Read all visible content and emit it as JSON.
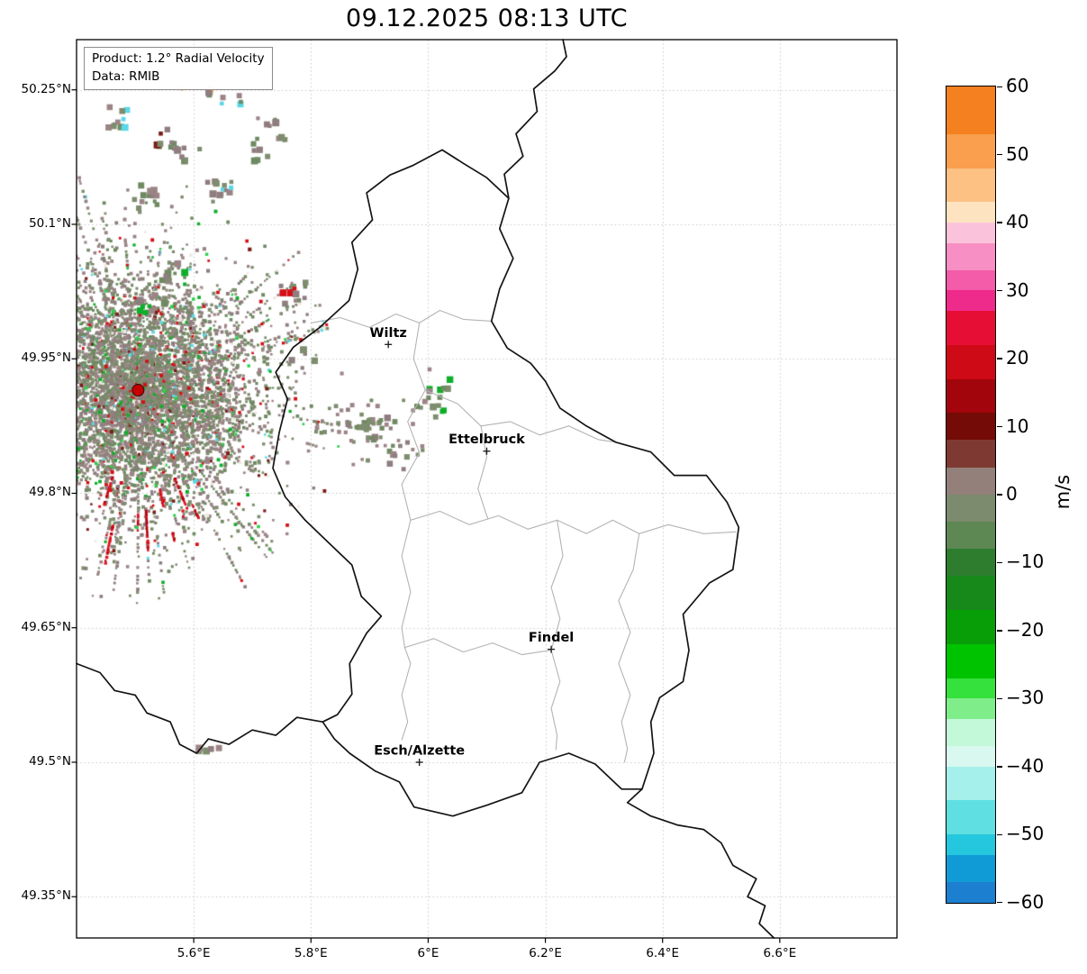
{
  "title": "09.12.2025 08:13 UTC",
  "info_box": {
    "product": "Product: 1.2° Radial Velocity",
    "source": "Data: RMIB"
  },
  "axes": {
    "lon_range": [
      5.4,
      6.8
    ],
    "lat_range": [
      49.304,
      50.306
    ],
    "x_ticks": [
      {
        "lon": 5.6,
        "label": "5.6°E"
      },
      {
        "lon": 5.8,
        "label": "5.8°E"
      },
      {
        "lon": 6.0,
        "label": "6°E"
      },
      {
        "lon": 6.2,
        "label": "6.2°E"
      },
      {
        "lon": 6.4,
        "label": "6.4°E"
      },
      {
        "lon": 6.6,
        "label": "6.6°E"
      }
    ],
    "y_ticks": [
      {
        "lat": 50.25,
        "label": "50.25°N"
      },
      {
        "lat": 50.1,
        "label": "50.1°N"
      },
      {
        "lat": 49.95,
        "label": "49.95°N"
      },
      {
        "lat": 49.8,
        "label": "49.8°N"
      },
      {
        "lat": 49.65,
        "label": "49.65°N"
      },
      {
        "lat": 49.5,
        "label": "49.5°N"
      },
      {
        "lat": 49.35,
        "label": "49.35°N"
      }
    ],
    "grid_color": "#c9c9c9"
  },
  "colorbar": {
    "label": "m/s",
    "range": [
      -60,
      60
    ],
    "ticks": [
      {
        "value": 60,
        "label": "60"
      },
      {
        "value": 50,
        "label": "50"
      },
      {
        "value": 40,
        "label": "40"
      },
      {
        "value": 30,
        "label": "30"
      },
      {
        "value": 20,
        "label": "20"
      },
      {
        "value": 10,
        "label": "10"
      },
      {
        "value": 0,
        "label": "0"
      },
      {
        "value": -10,
        "label": "−10"
      },
      {
        "value": -20,
        "label": "−20"
      },
      {
        "value": -30,
        "label": "−30"
      },
      {
        "value": -40,
        "label": "−40"
      },
      {
        "value": -50,
        "label": "−50"
      },
      {
        "value": -60,
        "label": "−60"
      }
    ],
    "segments": [
      {
        "max": 60,
        "min": 53,
        "color": "#f5801f"
      },
      {
        "max": 53,
        "min": 48,
        "color": "#f99f4e"
      },
      {
        "max": 48,
        "min": 43,
        "color": "#fcc183"
      },
      {
        "max": 43,
        "min": 40,
        "color": "#fde3c0"
      },
      {
        "max": 40,
        "min": 37,
        "color": "#fbc3db"
      },
      {
        "max": 37,
        "min": 33,
        "color": "#f78fc4"
      },
      {
        "max": 33,
        "min": 30,
        "color": "#f45ba8"
      },
      {
        "max": 30,
        "min": 27,
        "color": "#ee2a8a"
      },
      {
        "max": 27,
        "min": 22,
        "color": "#e60e34"
      },
      {
        "max": 22,
        "min": 17,
        "color": "#cf0a17"
      },
      {
        "max": 17,
        "min": 12,
        "color": "#a2050b"
      },
      {
        "max": 12,
        "min": 8,
        "color": "#740b06"
      },
      {
        "max": 8,
        "min": 4,
        "color": "#7e3a32"
      },
      {
        "max": 4,
        "min": 0,
        "color": "#93807a"
      },
      {
        "max": 0,
        "min": -4,
        "color": "#7c8a6e"
      },
      {
        "max": -4,
        "min": -8,
        "color": "#5d8853"
      },
      {
        "max": -8,
        "min": -12,
        "color": "#2e7d2e"
      },
      {
        "max": -12,
        "min": -17,
        "color": "#17891a"
      },
      {
        "max": -17,
        "min": -22,
        "color": "#089e08"
      },
      {
        "max": -22,
        "min": -27,
        "color": "#00c300"
      },
      {
        "max": -27,
        "min": -30,
        "color": "#35e13c"
      },
      {
        "max": -30,
        "min": -33,
        "color": "#7fee8a"
      },
      {
        "max": -33,
        "min": -37,
        "color": "#c3f8d8"
      },
      {
        "max": -37,
        "min": -40,
        "color": "#d8f8f0"
      },
      {
        "max": -40,
        "min": -45,
        "color": "#a5f0ea"
      },
      {
        "max": -45,
        "min": -50,
        "color": "#5fdfe2"
      },
      {
        "max": -50,
        "min": -53,
        "color": "#24c7dd"
      },
      {
        "max": -53,
        "min": -57,
        "color": "#119bd6"
      },
      {
        "max": -57,
        "min": -60,
        "color": "#1c7fd0"
      }
    ]
  },
  "cities": [
    {
      "name": "Wiltz",
      "lon": 5.932,
      "lat": 49.966
    },
    {
      "name": "Ettelbruck",
      "lon": 6.1,
      "lat": 49.847
    },
    {
      "name": "Findel",
      "lon": 6.21,
      "lat": 49.626
    },
    {
      "name": "Esch/Alzette",
      "lon": 5.985,
      "lat": 49.5
    }
  ],
  "radar": {
    "site": {
      "lon": 5.505,
      "lat": 49.915
    },
    "site_marker_color": "#c40000",
    "site_marker_edge": "#3a0000",
    "seed": 1337,
    "colors": {
      "mauve": "#9c8486",
      "mauve2": "#8f7d7f",
      "green_gray": "#7e8d6e",
      "green_gray2": "#6f8a62",
      "red": "#d40f16",
      "dark_red": "#7a1d16",
      "bright_green": "#0fae2a",
      "green2": "#2bd04a",
      "cyan": "#58d8e8",
      "light_cyan": "#a8eef2",
      "orange": "#f5a455",
      "white": "#efe8e0"
    },
    "clusters": [
      {
        "lon": 5.6,
        "lat": 50.25,
        "accent": "orange"
      },
      {
        "lon": 5.669,
        "lat": 50.235,
        "accent": "cyan"
      },
      {
        "lon": 5.73,
        "lat": 50.209
      },
      {
        "lon": 5.538,
        "lat": 50.199,
        "accent": "dark_red"
      },
      {
        "lon": 5.469,
        "lat": 50.222,
        "accent": "cyan"
      },
      {
        "lon": 5.584,
        "lat": 50.179
      },
      {
        "lon": 5.707,
        "lat": 50.187
      },
      {
        "lon": 5.638,
        "lat": 50.144,
        "accent": "cyan"
      },
      {
        "lon": 5.515,
        "lat": 50.134
      },
      {
        "lon": 5.554,
        "lat": 50.052,
        "accent": "bright_green"
      },
      {
        "lon": 5.526,
        "lat": 50.017,
        "accent": "bright_green"
      },
      {
        "lon": 5.764,
        "lat": 50.027,
        "accent": "red"
      },
      {
        "lon": 5.784,
        "lat": 49.953
      },
      {
        "lon": 6.007,
        "lat": 49.928,
        "accent": "bright_green"
      },
      {
        "lon": 5.881,
        "lat": 49.883
      },
      {
        "lon": 5.922,
        "lat": 49.876
      },
      {
        "lon": 5.953,
        "lat": 49.848
      },
      {
        "lon": 5.623,
        "lat": 49.508
      },
      {
        "lon": 5.999,
        "lat": 49.898,
        "accent": "bright_green"
      }
    ],
    "patches": [
      {
        "lon_min": 5.84,
        "lon_max": 5.99,
        "lat_min": 49.825,
        "lat_max": 49.905,
        "density": 0.1
      },
      {
        "lon_min": 5.79,
        "lon_max": 5.87,
        "lat_min": 49.855,
        "lat_max": 49.9,
        "density": 0.12
      }
    ]
  },
  "map": {
    "border_color": "#141414",
    "district_color": "#b4b4b4",
    "borders": {
      "luxembourg": [
        [
          6.024,
          50.183
        ],
        [
          6.06,
          50.168
        ],
        [
          6.1,
          50.152
        ],
        [
          6.1375,
          50.129
        ],
        [
          6.122,
          50.095
        ],
        [
          6.145,
          50.062
        ],
        [
          6.122,
          50.028
        ],
        [
          6.108,
          49.992
        ],
        [
          6.135,
          49.962
        ],
        [
          6.175,
          49.945
        ],
        [
          6.2,
          49.925
        ],
        [
          6.225,
          49.895
        ],
        [
          6.27,
          49.875
        ],
        [
          6.32,
          49.857
        ],
        [
          6.38,
          49.846
        ],
        [
          6.42,
          49.82
        ],
        [
          6.475,
          49.82
        ],
        [
          6.51,
          49.79
        ],
        [
          6.53,
          49.762
        ],
        [
          6.52,
          49.715
        ],
        [
          6.48,
          49.7
        ],
        [
          6.435,
          49.665
        ],
        [
          6.445,
          49.625
        ],
        [
          6.435,
          49.59
        ],
        [
          6.395,
          49.572
        ],
        [
          6.38,
          49.545
        ],
        [
          6.385,
          49.51
        ],
        [
          6.365,
          49.47
        ],
        [
          6.33,
          49.47
        ],
        [
          6.285,
          49.498
        ],
        [
          6.24,
          49.51
        ],
        [
          6.19,
          49.5
        ],
        [
          6.16,
          49.466
        ],
        [
          6.1,
          49.452
        ],
        [
          6.042,
          49.44
        ],
        [
          5.976,
          49.45
        ],
        [
          5.951,
          49.478
        ],
        [
          5.91,
          49.49
        ],
        [
          5.866,
          49.51
        ],
        [
          5.84,
          49.526
        ],
        [
          5.82,
          49.545
        ],
        [
          5.845,
          49.553
        ],
        [
          5.87,
          49.576
        ],
        [
          5.866,
          49.61
        ],
        [
          5.895,
          49.644
        ],
        [
          5.92,
          49.663
        ],
        [
          5.886,
          49.685
        ],
        [
          5.87,
          49.72
        ],
        [
          5.83,
          49.745
        ],
        [
          5.79,
          49.77
        ],
        [
          5.756,
          49.796
        ],
        [
          5.735,
          49.828
        ],
        [
          5.746,
          49.868
        ],
        [
          5.76,
          49.905
        ],
        [
          5.74,
          49.935
        ],
        [
          5.77,
          49.963
        ],
        [
          5.815,
          49.985
        ],
        [
          5.865,
          50.015
        ],
        [
          5.88,
          50.05
        ],
        [
          5.87,
          50.08
        ],
        [
          5.905,
          50.105
        ],
        [
          5.895,
          50.135
        ],
        [
          5.935,
          50.155
        ],
        [
          5.975,
          50.166
        ],
        [
          6.024,
          50.183
        ]
      ],
      "belgium_germany": [
        [
          6.1375,
          50.129
        ],
        [
          6.13,
          50.156
        ],
        [
          6.162,
          50.176
        ],
        [
          6.15,
          50.201
        ],
        [
          6.186,
          50.226
        ],
        [
          6.18,
          50.251
        ],
        [
          6.216,
          50.271
        ],
        [
          6.236,
          50.287
        ],
        [
          6.23,
          50.306
        ]
      ],
      "belgium_france": [
        [
          5.4,
          49.61
        ],
        [
          5.44,
          49.6
        ],
        [
          5.465,
          49.58
        ],
        [
          5.5,
          49.575
        ],
        [
          5.52,
          49.555
        ],
        [
          5.56,
          49.545
        ],
        [
          5.576,
          49.52
        ],
        [
          5.605,
          49.51
        ],
        [
          5.625,
          49.526
        ],
        [
          5.66,
          49.52
        ],
        [
          5.7,
          49.536
        ],
        [
          5.74,
          49.53
        ],
        [
          5.776,
          49.55
        ],
        [
          5.82,
          49.545
        ]
      ],
      "france_germany": [
        [
          6.365,
          49.47
        ],
        [
          6.34,
          49.455
        ],
        [
          6.38,
          49.44
        ],
        [
          6.425,
          49.43
        ],
        [
          6.47,
          49.425
        ],
        [
          6.5,
          49.41
        ],
        [
          6.52,
          49.385
        ],
        [
          6.56,
          49.37
        ],
        [
          6.545,
          49.35
        ],
        [
          6.575,
          49.34
        ],
        [
          6.565,
          49.32
        ],
        [
          6.59,
          49.304
        ]
      ],
      "districts": [
        [
          [
            5.8,
            49.99
          ],
          [
            5.85,
            49.996
          ],
          [
            5.9,
            49.985
          ],
          [
            5.945,
            50.0
          ],
          [
            5.985,
            49.99
          ],
          [
            6.02,
            50.004
          ],
          [
            6.06,
            49.994
          ],
          [
            6.108,
            49.992
          ]
        ],
        [
          [
            5.985,
            49.99
          ],
          [
            5.975,
            49.95
          ],
          [
            5.995,
            49.915
          ],
          [
            5.965,
            49.88
          ],
          [
            5.985,
            49.845
          ],
          [
            5.955,
            49.81
          ],
          [
            5.97,
            49.77
          ],
          [
            5.955,
            49.73
          ],
          [
            5.97,
            49.69
          ],
          [
            5.955,
            49.65
          ],
          [
            5.96,
            49.628
          ],
          [
            5.97,
            49.61
          ],
          [
            5.955,
            49.575
          ],
          [
            5.965,
            49.545
          ],
          [
            5.955,
            49.525
          ]
        ],
        [
          [
            5.995,
            49.915
          ],
          [
            6.05,
            49.9
          ],
          [
            6.09,
            49.875
          ],
          [
            6.14,
            49.88
          ],
          [
            6.19,
            49.865
          ],
          [
            6.24,
            49.875
          ],
          [
            6.29,
            49.86
          ],
          [
            6.32,
            49.857
          ]
        ],
        [
          [
            5.97,
            49.77
          ],
          [
            6.02,
            49.78
          ],
          [
            6.07,
            49.765
          ],
          [
            6.12,
            49.775
          ],
          [
            6.17,
            49.76
          ],
          [
            6.22,
            49.77
          ],
          [
            6.27,
            49.755
          ],
          [
            6.315,
            49.77
          ],
          [
            6.36,
            49.755
          ],
          [
            6.41,
            49.765
          ],
          [
            6.47,
            49.755
          ],
          [
            6.525,
            49.757
          ]
        ],
        [
          [
            6.36,
            49.755
          ],
          [
            6.35,
            49.715
          ],
          [
            6.325,
            49.68
          ],
          [
            6.345,
            49.645
          ],
          [
            6.325,
            49.61
          ],
          [
            6.345,
            49.575
          ],
          [
            6.33,
            49.545
          ],
          [
            6.34,
            49.515
          ],
          [
            6.335,
            49.5
          ]
        ],
        [
          [
            6.22,
            49.77
          ],
          [
            6.23,
            49.73
          ],
          [
            6.21,
            49.695
          ],
          [
            6.225,
            49.66
          ],
          [
            6.21,
            49.625
          ],
          [
            6.225,
            49.59
          ],
          [
            6.21,
            49.56
          ],
          [
            6.22,
            49.53
          ],
          [
            6.218,
            49.514
          ]
        ],
        [
          [
            5.96,
            49.628
          ],
          [
            6.01,
            49.638
          ],
          [
            6.06,
            49.623
          ],
          [
            6.11,
            49.633
          ],
          [
            6.16,
            49.62
          ],
          [
            6.21,
            49.625
          ]
        ],
        [
          [
            6.09,
            49.875
          ],
          [
            6.1,
            49.84
          ],
          [
            6.085,
            49.805
          ],
          [
            6.1,
            49.775
          ],
          [
            6.102,
            49.772
          ]
        ]
      ]
    }
  }
}
